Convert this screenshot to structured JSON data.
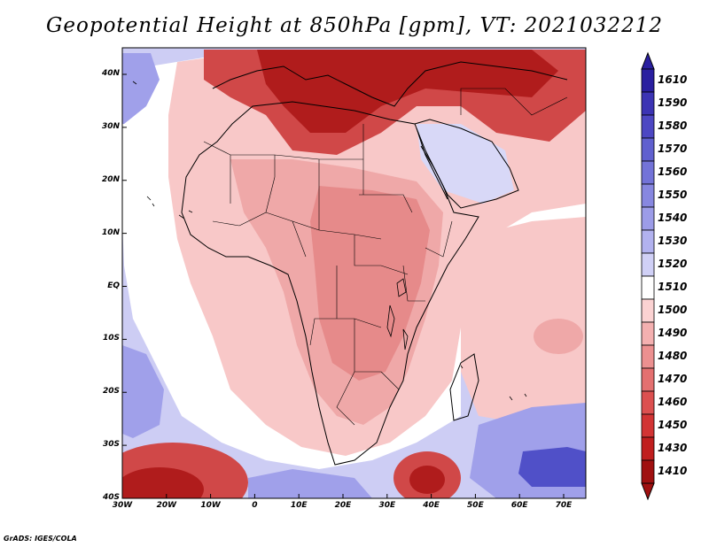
{
  "title": "Geopotential Height at 850hPa [gpm], VT: 2021032212",
  "credit": "GrADS: IGES/COLA",
  "axes": {
    "lat_labels": [
      "40N",
      "30N",
      "20N",
      "10N",
      "EQ",
      "10S",
      "20S",
      "30S",
      "40S"
    ],
    "lon_labels": [
      "30W",
      "20W",
      "10W",
      "0",
      "10E",
      "20E",
      "30E",
      "40E",
      "50E",
      "60E",
      "70E"
    ]
  },
  "colorbar": {
    "levels": [
      "1610",
      "1590",
      "1580",
      "1570",
      "1560",
      "1550",
      "1540",
      "1530",
      "1520",
      "1510",
      "1500",
      "1490",
      "1480",
      "1470",
      "1460",
      "1450",
      "1430",
      "1410"
    ],
    "colors": [
      "#2a1fa0",
      "#3c34b4",
      "#4d47c3",
      "#6060cf",
      "#7373d8",
      "#8787e0",
      "#9c9ce8",
      "#b2b2ef",
      "#d0d0f6",
      "#ffffff",
      "#fbd2d2",
      "#f4b0b0",
      "#ec9090",
      "#e47070",
      "#dc5050",
      "#d23434",
      "#c01e1e",
      "#a01010"
    ]
  },
  "field_colors": {
    "ocean_base": "#cdcdf4",
    "light_blue": "#d8d8f7",
    "mid_blue": "#a0a0ea",
    "deep_blue": "#5050c8",
    "white": "#ffffff",
    "pink": "#f8c8c8",
    "light_red": "#efa8a8",
    "mid_red": "#e68a8a",
    "red": "#d04848",
    "dark_red": "#b01c1c",
    "border": "#000000"
  }
}
